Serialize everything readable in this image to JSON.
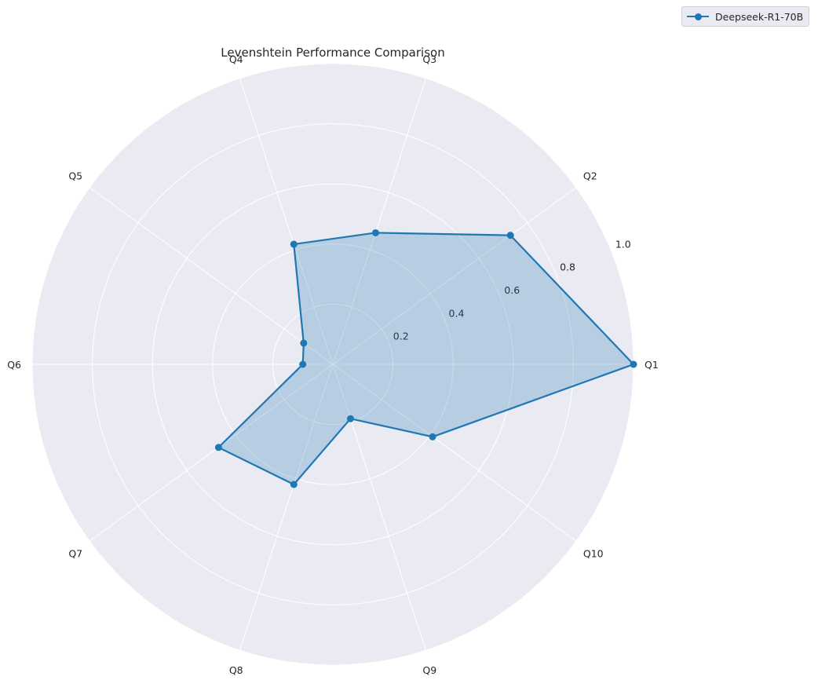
{
  "chart_data": {
    "type": "radar",
    "title": "Levenshtein Performance Comparison",
    "categories": [
      "Q1",
      "Q2",
      "Q3",
      "Q4",
      "Q5",
      "Q6",
      "Q7",
      "Q8",
      "Q9",
      "Q10"
    ],
    "series": [
      {
        "name": "Deepseek-R1-70B",
        "values": [
          1.0,
          0.73,
          0.46,
          0.42,
          0.12,
          0.1,
          0.47,
          0.42,
          0.19,
          0.41
        ],
        "color": "#1f77b4"
      }
    ],
    "rlim": [
      0,
      1.0
    ],
    "rticks": [
      "0.2",
      "0.4",
      "0.6",
      "0.8",
      "1.0"
    ],
    "rtick_values": [
      0.2,
      0.4,
      0.6,
      0.8,
      1.0
    ],
    "grid": true,
    "legend_position": "top-right",
    "background": "#eaeaf2"
  }
}
